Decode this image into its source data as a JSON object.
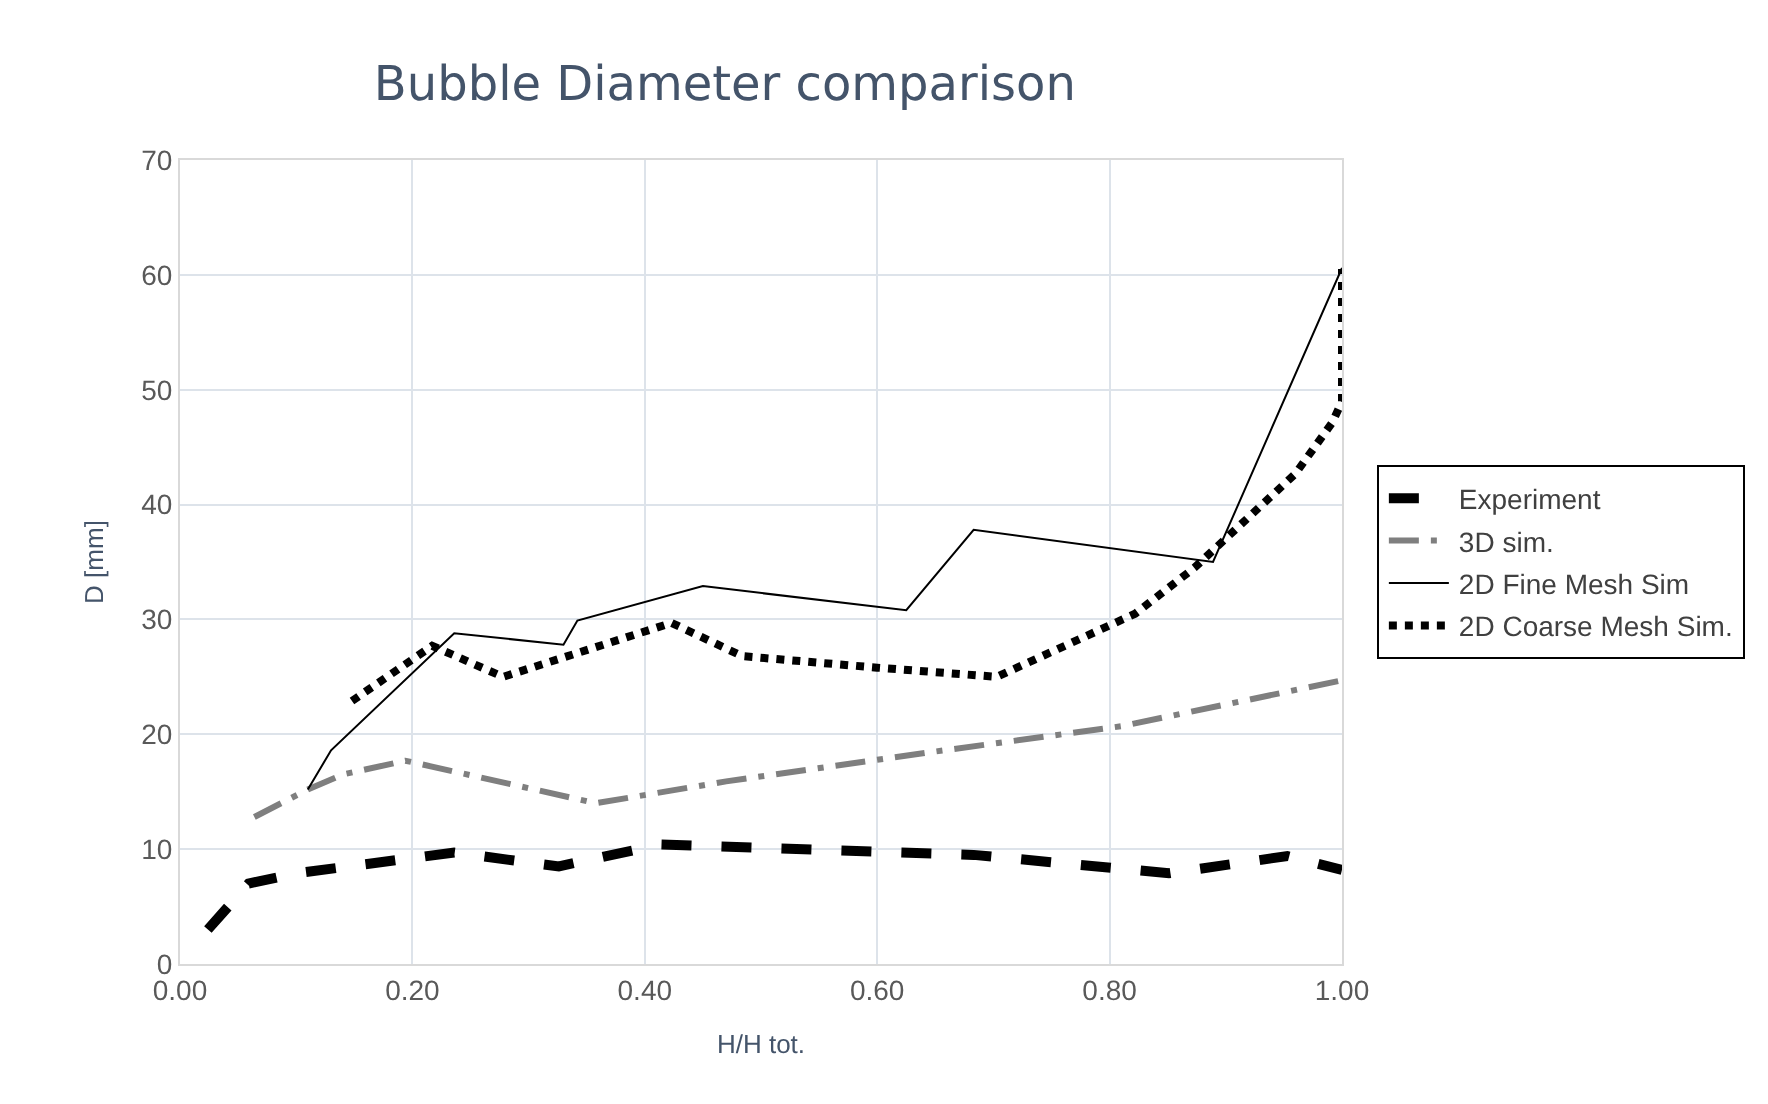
{
  "chart_data": {
    "type": "line",
    "title": "Bubble Diameter comparison",
    "xlabel": "H/H tot.",
    "ylabel": "D [mm]",
    "xlim": [
      0,
      1
    ],
    "xticks": [
      {
        "value": 0,
        "label": "0.00"
      },
      {
        "value": 0.2,
        "label": "0.20"
      },
      {
        "value": 0.4,
        "label": "0.40"
      },
      {
        "value": 0.6,
        "label": "0.60"
      },
      {
        "value": 0.8,
        "label": "0.80"
      },
      {
        "value": 1,
        "label": "1.00"
      }
    ],
    "ylim": [
      0,
      70
    ],
    "yticks": [
      0,
      10,
      20,
      30,
      40,
      50,
      60,
      70
    ],
    "grid": true,
    "legend": "right",
    "marker": "none",
    "series": [
      {
        "name": "Experiment",
        "color": "#000000",
        "line_style": "dashed",
        "x": [
          0.024,
          0.059,
          0.1,
          0.236,
          0.326,
          0.413,
          0.683,
          0.851,
          0.953,
          1.0
        ],
        "values": [
          3.0,
          7.0,
          7.9,
          9.7,
          8.5,
          10.4,
          9.5,
          7.9,
          9.4,
          8.2
        ]
      },
      {
        "name": "3D sim.",
        "color": "#7f7f7f",
        "line_style": "dashdot",
        "x": [
          0.064,
          0.11,
          0.14,
          0.194,
          0.358,
          0.47,
          0.65,
          0.81,
          1.0
        ],
        "values": [
          12.8,
          15.2,
          16.5,
          17.7,
          14.0,
          15.9,
          18.5,
          20.7,
          24.7
        ]
      },
      {
        "name": "2D Fine Mesh Sim",
        "color": "#000000",
        "line_style": "solid",
        "x": [
          0.11,
          0.13,
          0.236,
          0.33,
          0.342,
          0.45,
          0.625,
          0.683,
          0.889,
          1.0
        ],
        "values": [
          15.2,
          18.6,
          28.8,
          27.8,
          29.9,
          32.9,
          30.8,
          37.8,
          35.0,
          60.6
        ]
      },
      {
        "name": "2D Coarse Mesh Sim.",
        "color": "#000000",
        "line_style": "dotted",
        "x": [
          0.148,
          0.217,
          0.278,
          0.423,
          0.484,
          0.6,
          0.703,
          0.822,
          0.873,
          0.96,
          0.992,
          1.0,
          1.0
        ],
        "values": [
          22.9,
          27.7,
          25.0,
          29.7,
          26.8,
          25.8,
          25.0,
          30.5,
          34.5,
          42.7,
          47.2,
          49.0,
          60.5
        ]
      }
    ]
  }
}
